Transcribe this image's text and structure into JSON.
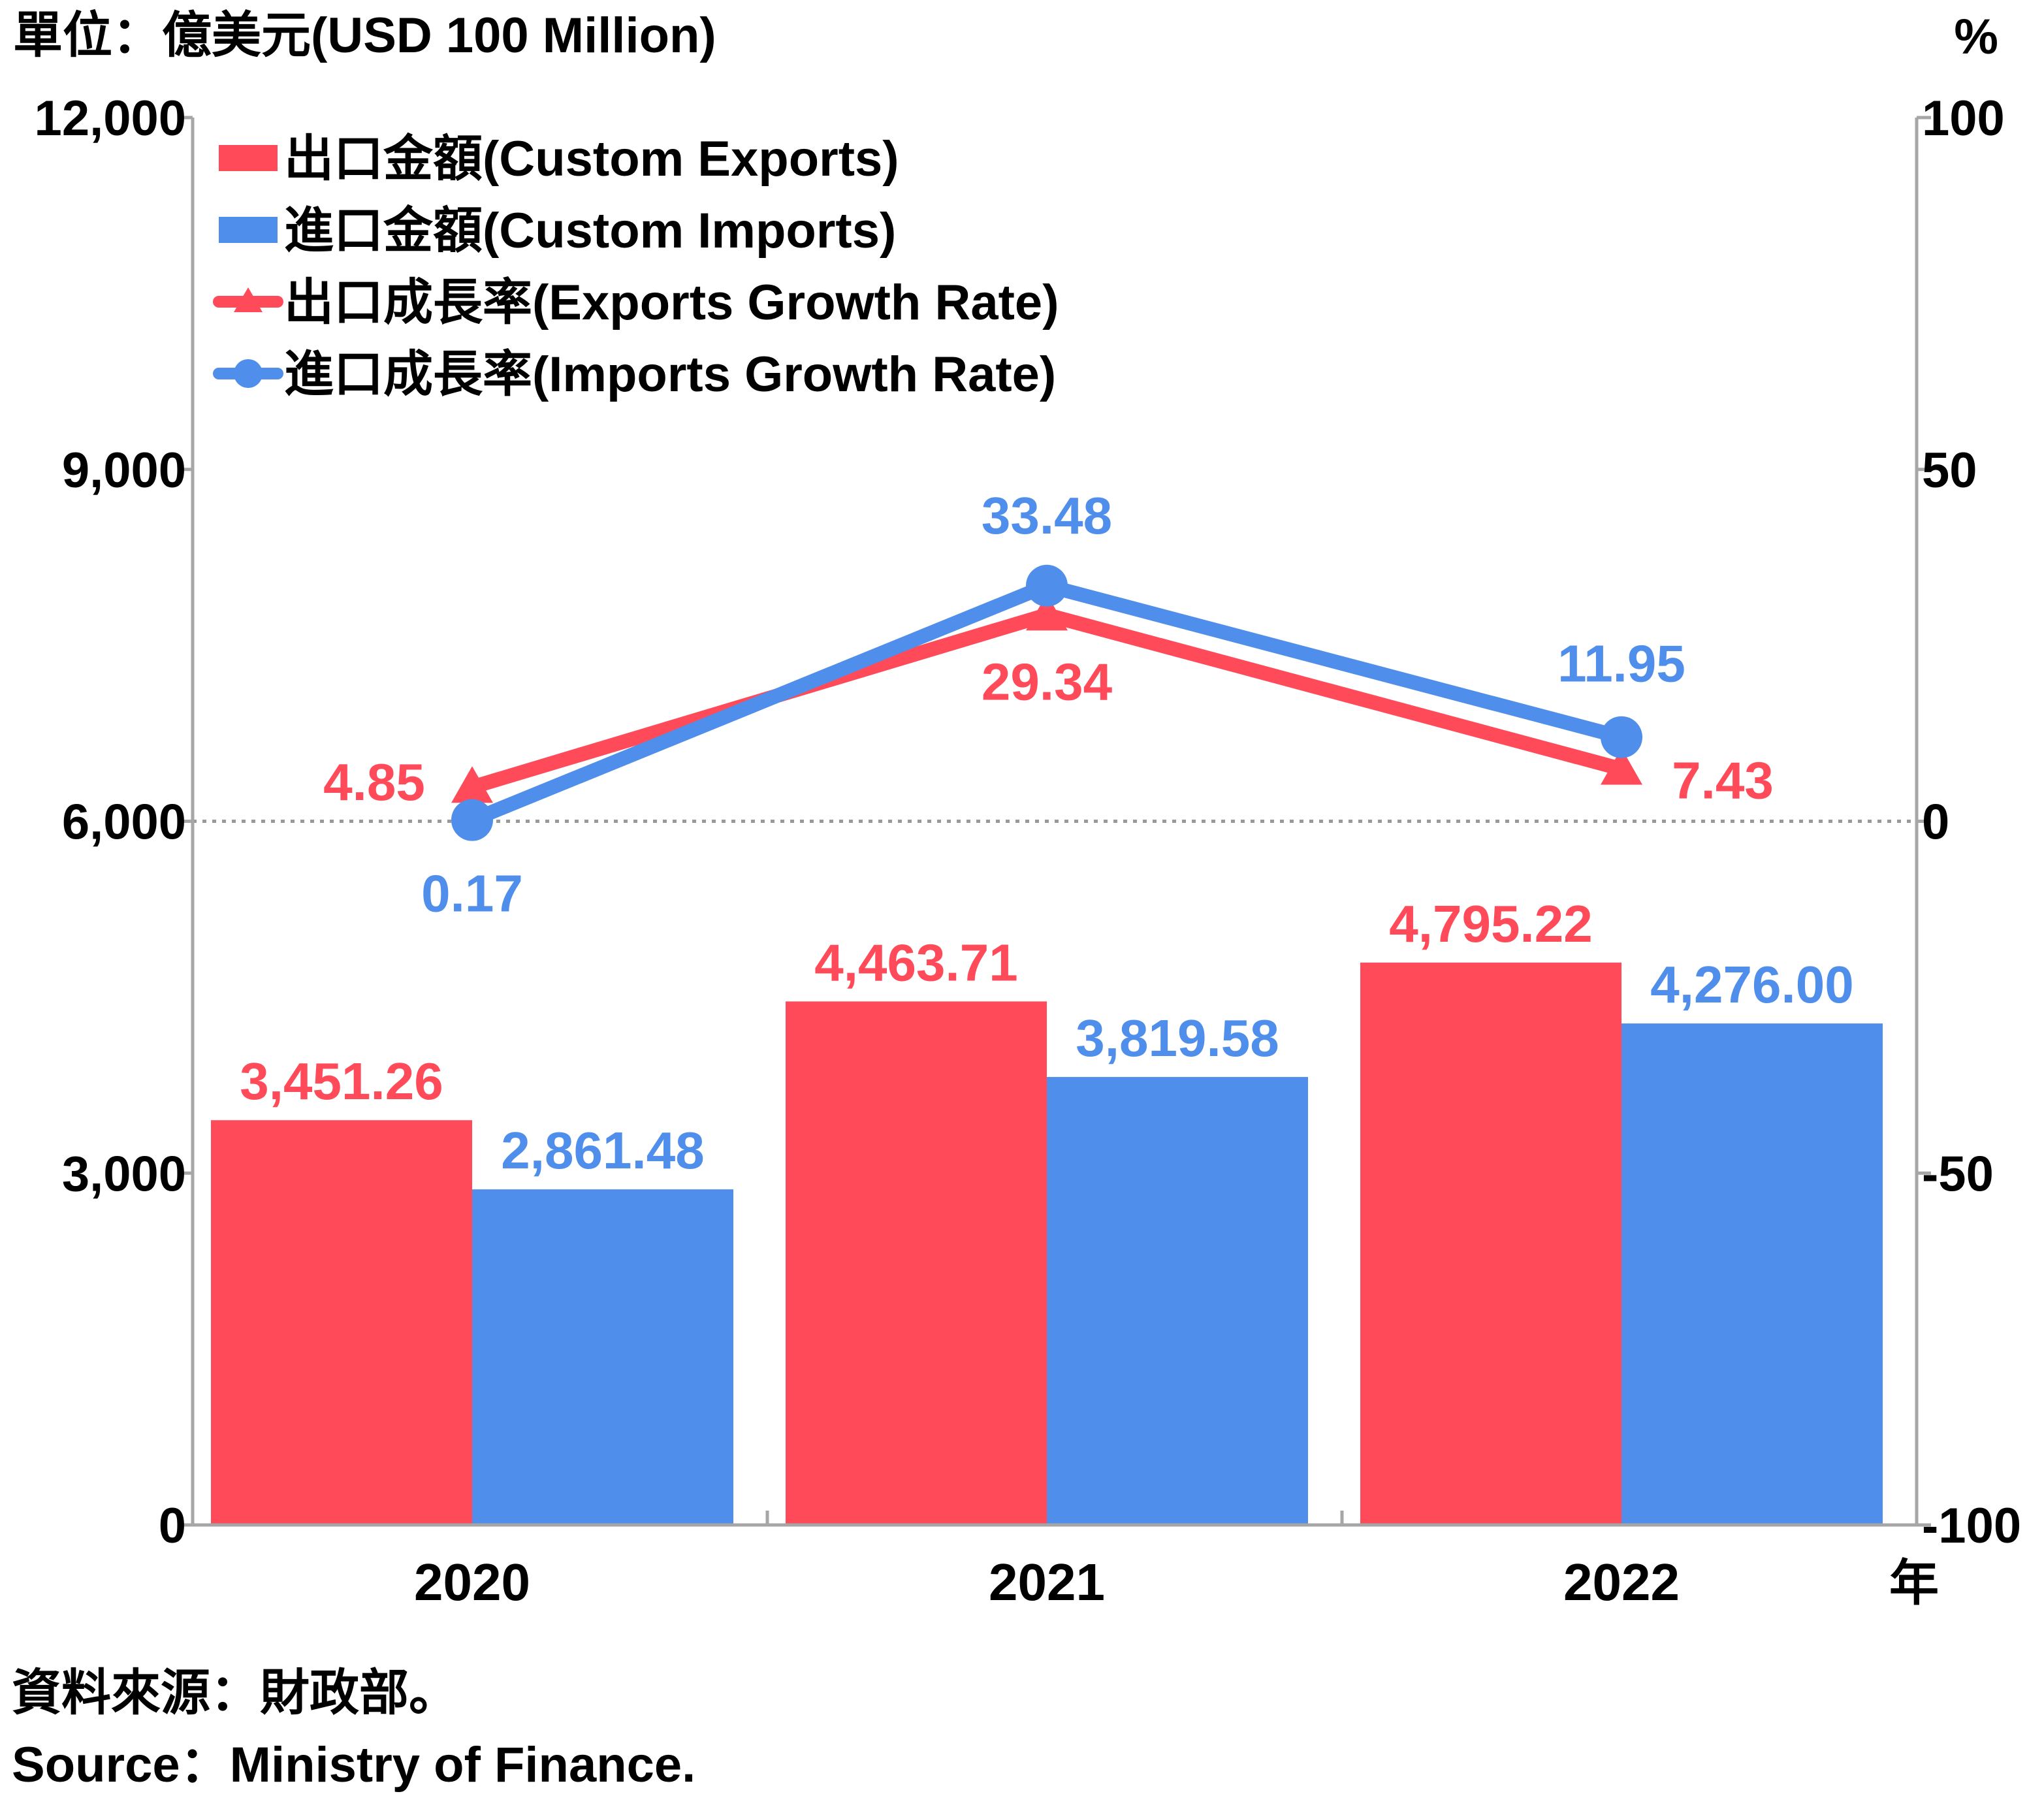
{
  "chart_data": {
    "type": "bar",
    "unit_label_left": "單位：億美元(USD 100 Million)",
    "unit_label_right": "%",
    "x_suffix": "年",
    "categories": [
      "2020",
      "2021",
      "2022"
    ],
    "ylim_left": [
      0,
      12000
    ],
    "yticks_left": [
      "0",
      "3,000",
      "6,000",
      "9,000",
      "12,000"
    ],
    "ylim_right": [
      -100,
      100
    ],
    "yticks_right": [
      "-100",
      "-50",
      "0",
      "50",
      "100"
    ],
    "bar_series": [
      {
        "name": "出口金額(Custom Exports)",
        "color": "#ff4a5a",
        "values": [
          3451.26,
          4463.71,
          4795.22
        ],
        "labels": [
          "3,451.26",
          "4,463.71",
          "4,795.22"
        ]
      },
      {
        "name": "進口金額(Custom Imports)",
        "color": "#4f8eeb",
        "values": [
          2861.48,
          3819.58,
          4276.0
        ],
        "labels": [
          "2,861.48",
          "3,819.58",
          "4,276.00"
        ]
      }
    ],
    "line_series": [
      {
        "name": "出口成長率(Exports Growth Rate)",
        "color": "#ff4a5a",
        "marker": "triangle",
        "values": [
          4.85,
          29.34,
          7.43
        ],
        "labels": [
          "4.85",
          "29.34",
          "7.43"
        ]
      },
      {
        "name": "進口成長率(Imports Growth Rate)",
        "color": "#4f8eeb",
        "marker": "circle",
        "values": [
          0.17,
          33.48,
          11.95
        ],
        "labels": [
          "0.17",
          "33.48",
          "11.95"
        ]
      }
    ],
    "zero_reference_line": "dotted",
    "legend_position": "top-left"
  },
  "source": {
    "zh": "資料來源：財政部。",
    "en": "Source：Ministry of Finance."
  }
}
